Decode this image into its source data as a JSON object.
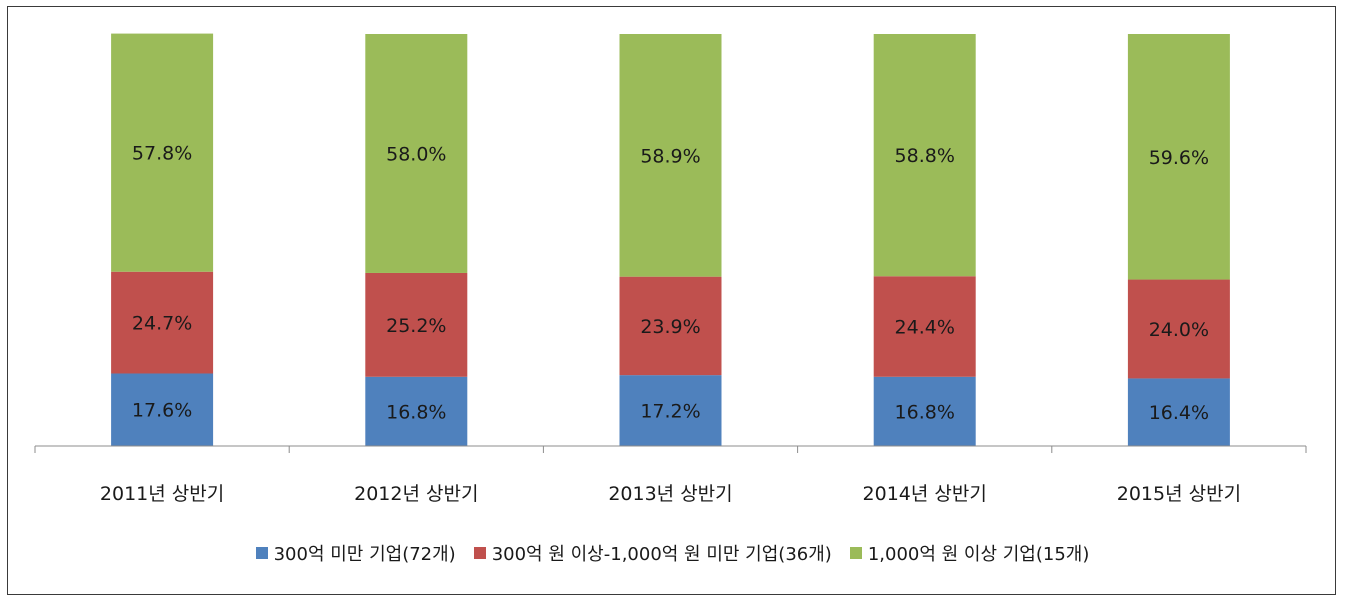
{
  "chart_data": {
    "type": "bar",
    "stacked": true,
    "categories": [
      "2011년 상반기",
      "2012년 상반기",
      "2013년 상반기",
      "2014년 상반기",
      "2015년 상반기"
    ],
    "series": [
      {
        "name": "300억 미만 기업(72개)",
        "color": "#4f81bd",
        "values": [
          17.6,
          16.8,
          17.2,
          16.8,
          16.4
        ],
        "labels": [
          "17.6%",
          "16.8%",
          "17.2%",
          "16.8%",
          "16.4%"
        ]
      },
      {
        "name": "300억 원 이상-1,000억 원 미만 기업(36개)",
        "color": "#c0504d",
        "values": [
          24.7,
          25.2,
          23.9,
          24.4,
          24.0
        ],
        "labels": [
          "24.7%",
          "25.2%",
          "23.9%",
          "24.4%",
          "24.0%"
        ]
      },
      {
        "name": "1,000억 원 이상 기업(15개)",
        "color": "#9bbb59",
        "values": [
          57.8,
          58.0,
          58.9,
          58.8,
          59.6
        ],
        "labels": [
          "57.8%",
          "58.0%",
          "58.9%",
          "58.8%",
          "59.6%"
        ]
      }
    ],
    "ylim": [
      0,
      100
    ],
    "grid": false,
    "legend_position": "bottom",
    "title": "",
    "xlabel": "",
    "ylabel": ""
  }
}
